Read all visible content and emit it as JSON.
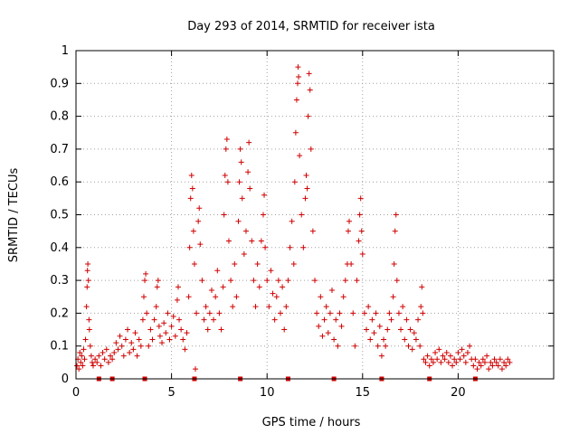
{
  "chart_data": {
    "type": "scatter",
    "title": "Day 293 of 2014, SRMTID for receiver ista",
    "xlabel": "GPS time / hours",
    "ylabel": "SRMTID / TECUs",
    "xlim": [
      0,
      25
    ],
    "ylim": [
      0,
      1
    ],
    "xticks": [
      0,
      5,
      10,
      15,
      20
    ],
    "yticks": [
      0,
      0.1,
      0.2,
      0.3,
      0.4,
      0.5,
      0.6,
      0.7,
      0.8,
      0.9,
      1
    ],
    "grid": true,
    "marker": "+",
    "color": "#d00000",
    "baseline_markers": {
      "marker": "square",
      "y": 0,
      "x": [
        1.2,
        1.9,
        3.6,
        6.2,
        8.6,
        11.1,
        13.5,
        16.0,
        18.5,
        20.9
      ]
    },
    "series": [
      {
        "name": "SRMTID",
        "points": [
          [
            0.05,
            0.04
          ],
          [
            0.1,
            0.06
          ],
          [
            0.15,
            0.03
          ],
          [
            0.2,
            0.08
          ],
          [
            0.25,
            0.05
          ],
          [
            0.3,
            0.07
          ],
          [
            0.35,
            0.04
          ],
          [
            0.4,
            0.09
          ],
          [
            0.45,
            0.06
          ],
          [
            0.5,
            0.12
          ],
          [
            0.55,
            0.22
          ],
          [
            0.58,
            0.28
          ],
          [
            0.6,
            0.33
          ],
          [
            0.62,
            0.35
          ],
          [
            0.65,
            0.3
          ],
          [
            0.68,
            0.18
          ],
          [
            0.7,
            0.15
          ],
          [
            0.75,
            0.1
          ],
          [
            0.8,
            0.07
          ],
          [
            0.85,
            0.05
          ],
          [
            0.9,
            0.04
          ],
          [
            1.0,
            0.06
          ],
          [
            1.1,
            0.05
          ],
          [
            1.2,
            0.07
          ],
          [
            1.3,
            0.04
          ],
          [
            1.4,
            0.08
          ],
          [
            1.5,
            0.06
          ],
          [
            1.6,
            0.09
          ],
          [
            1.7,
            0.05
          ],
          [
            1.8,
            0.07
          ],
          [
            1.9,
            0.06
          ],
          [
            2.0,
            0.08
          ],
          [
            2.1,
            0.11
          ],
          [
            2.2,
            0.09
          ],
          [
            2.3,
            0.13
          ],
          [
            2.4,
            0.1
          ],
          [
            2.5,
            0.07
          ],
          [
            2.6,
            0.12
          ],
          [
            2.7,
            0.15
          ],
          [
            2.8,
            0.08
          ],
          [
            2.9,
            0.11
          ],
          [
            3.0,
            0.09
          ],
          [
            3.1,
            0.14
          ],
          [
            3.2,
            0.07
          ],
          [
            3.3,
            0.12
          ],
          [
            3.4,
            0.1
          ],
          [
            3.5,
            0.18
          ],
          [
            3.55,
            0.25
          ],
          [
            3.6,
            0.3
          ],
          [
            3.65,
            0.32
          ],
          [
            3.7,
            0.2
          ],
          [
            3.8,
            0.1
          ],
          [
            3.9,
            0.15
          ],
          [
            4.0,
            0.12
          ],
          [
            4.1,
            0.18
          ],
          [
            4.2,
            0.22
          ],
          [
            4.25,
            0.28
          ],
          [
            4.3,
            0.3
          ],
          [
            4.35,
            0.16
          ],
          [
            4.4,
            0.13
          ],
          [
            4.5,
            0.11
          ],
          [
            4.6,
            0.17
          ],
          [
            4.7,
            0.14
          ],
          [
            4.8,
            0.2
          ],
          [
            4.9,
            0.12
          ],
          [
            5.0,
            0.16
          ],
          [
            5.1,
            0.19
          ],
          [
            5.2,
            0.13
          ],
          [
            5.3,
            0.24
          ],
          [
            5.35,
            0.28
          ],
          [
            5.4,
            0.18
          ],
          [
            5.5,
            0.15
          ],
          [
            5.6,
            0.12
          ],
          [
            5.7,
            0.09
          ],
          [
            5.8,
            0.14
          ],
          [
            5.9,
            0.25
          ],
          [
            5.95,
            0.4
          ],
          [
            6.0,
            0.55
          ],
          [
            6.05,
            0.62
          ],
          [
            6.1,
            0.58
          ],
          [
            6.15,
            0.45
          ],
          [
            6.2,
            0.35
          ],
          [
            6.25,
            0.03
          ],
          [
            6.3,
            0.2
          ],
          [
            6.4,
            0.48
          ],
          [
            6.45,
            0.52
          ],
          [
            6.5,
            0.41
          ],
          [
            6.6,
            0.3
          ],
          [
            6.7,
            0.18
          ],
          [
            6.8,
            0.22
          ],
          [
            6.9,
            0.15
          ],
          [
            7.0,
            0.2
          ],
          [
            7.1,
            0.27
          ],
          [
            7.2,
            0.18
          ],
          [
            7.3,
            0.25
          ],
          [
            7.4,
            0.33
          ],
          [
            7.5,
            0.2
          ],
          [
            7.6,
            0.15
          ],
          [
            7.7,
            0.28
          ],
          [
            7.75,
            0.5
          ],
          [
            7.8,
            0.62
          ],
          [
            7.85,
            0.7
          ],
          [
            7.9,
            0.73
          ],
          [
            7.95,
            0.6
          ],
          [
            8.0,
            0.42
          ],
          [
            8.1,
            0.3
          ],
          [
            8.2,
            0.22
          ],
          [
            8.3,
            0.35
          ],
          [
            8.4,
            0.25
          ],
          [
            8.5,
            0.48
          ],
          [
            8.55,
            0.6
          ],
          [
            8.6,
            0.7
          ],
          [
            8.65,
            0.66
          ],
          [
            8.7,
            0.55
          ],
          [
            8.8,
            0.38
          ],
          [
            8.9,
            0.45
          ],
          [
            9.0,
            0.63
          ],
          [
            9.05,
            0.72
          ],
          [
            9.1,
            0.58
          ],
          [
            9.2,
            0.42
          ],
          [
            9.3,
            0.3
          ],
          [
            9.4,
            0.22
          ],
          [
            9.5,
            0.35
          ],
          [
            9.6,
            0.28
          ],
          [
            9.7,
            0.42
          ],
          [
            9.8,
            0.5
          ],
          [
            9.85,
            0.56
          ],
          [
            9.9,
            0.4
          ],
          [
            10.0,
            0.3
          ],
          [
            10.1,
            0.22
          ],
          [
            10.2,
            0.33
          ],
          [
            10.3,
            0.26
          ],
          [
            10.4,
            0.18
          ],
          [
            10.5,
            0.25
          ],
          [
            10.6,
            0.3
          ],
          [
            10.7,
            0.2
          ],
          [
            10.8,
            0.28
          ],
          [
            10.9,
            0.15
          ],
          [
            11.0,
            0.22
          ],
          [
            11.1,
            0.3
          ],
          [
            11.2,
            0.4
          ],
          [
            11.3,
            0.48
          ],
          [
            11.4,
            0.35
          ],
          [
            11.45,
            0.6
          ],
          [
            11.5,
            0.75
          ],
          [
            11.55,
            0.85
          ],
          [
            11.6,
            0.9
          ],
          [
            11.62,
            0.95
          ],
          [
            11.65,
            0.92
          ],
          [
            11.7,
            0.68
          ],
          [
            11.8,
            0.5
          ],
          [
            11.9,
            0.4
          ],
          [
            12.0,
            0.55
          ],
          [
            12.05,
            0.62
          ],
          [
            12.1,
            0.58
          ],
          [
            12.15,
            0.8
          ],
          [
            12.2,
            0.93
          ],
          [
            12.25,
            0.88
          ],
          [
            12.3,
            0.7
          ],
          [
            12.4,
            0.45
          ],
          [
            12.5,
            0.3
          ],
          [
            12.6,
            0.2
          ],
          [
            12.7,
            0.16
          ],
          [
            12.8,
            0.25
          ],
          [
            12.9,
            0.13
          ],
          [
            13.0,
            0.18
          ],
          [
            13.1,
            0.22
          ],
          [
            13.2,
            0.14
          ],
          [
            13.3,
            0.2
          ],
          [
            13.4,
            0.27
          ],
          [
            13.5,
            0.12
          ],
          [
            13.6,
            0.18
          ],
          [
            13.7,
            0.1
          ],
          [
            13.8,
            0.2
          ],
          [
            13.9,
            0.16
          ],
          [
            14.0,
            0.25
          ],
          [
            14.1,
            0.3
          ],
          [
            14.2,
            0.35
          ],
          [
            14.25,
            0.45
          ],
          [
            14.3,
            0.48
          ],
          [
            14.4,
            0.35
          ],
          [
            14.5,
            0.2
          ],
          [
            14.6,
            0.1
          ],
          [
            14.7,
            0.3
          ],
          [
            14.8,
            0.42
          ],
          [
            14.85,
            0.5
          ],
          [
            14.9,
            0.55
          ],
          [
            14.95,
            0.45
          ],
          [
            15.0,
            0.38
          ],
          [
            15.1,
            0.2
          ],
          [
            15.2,
            0.15
          ],
          [
            15.3,
            0.22
          ],
          [
            15.4,
            0.12
          ],
          [
            15.5,
            0.18
          ],
          [
            15.6,
            0.14
          ],
          [
            15.7,
            0.2
          ],
          [
            15.8,
            0.1
          ],
          [
            15.9,
            0.16
          ],
          [
            16.0,
            0.07
          ],
          [
            16.1,
            0.12
          ],
          [
            16.2,
            0.1
          ],
          [
            16.3,
            0.15
          ],
          [
            16.4,
            0.2
          ],
          [
            16.5,
            0.18
          ],
          [
            16.6,
            0.25
          ],
          [
            16.65,
            0.35
          ],
          [
            16.7,
            0.45
          ],
          [
            16.75,
            0.5
          ],
          [
            16.8,
            0.3
          ],
          [
            16.9,
            0.2
          ],
          [
            17.0,
            0.15
          ],
          [
            17.1,
            0.22
          ],
          [
            17.2,
            0.12
          ],
          [
            17.3,
            0.18
          ],
          [
            17.4,
            0.1
          ],
          [
            17.5,
            0.15
          ],
          [
            17.6,
            0.09
          ],
          [
            17.7,
            0.14
          ],
          [
            17.8,
            0.12
          ],
          [
            17.9,
            0.18
          ],
          [
            18.0,
            0.1
          ],
          [
            18.05,
            0.22
          ],
          [
            18.1,
            0.28
          ],
          [
            18.15,
            0.2
          ],
          [
            18.2,
            0.06
          ],
          [
            18.3,
            0.05
          ],
          [
            18.4,
            0.07
          ],
          [
            18.5,
            0.04
          ],
          [
            18.6,
            0.06
          ],
          [
            18.7,
            0.05
          ],
          [
            18.8,
            0.08
          ],
          [
            18.9,
            0.06
          ],
          [
            19.0,
            0.09
          ],
          [
            19.1,
            0.05
          ],
          [
            19.2,
            0.07
          ],
          [
            19.3,
            0.06
          ],
          [
            19.4,
            0.08
          ],
          [
            19.5,
            0.05
          ],
          [
            19.6,
            0.07
          ],
          [
            19.7,
            0.04
          ],
          [
            19.8,
            0.06
          ],
          [
            19.9,
            0.05
          ],
          [
            20.0,
            0.08
          ],
          [
            20.1,
            0.06
          ],
          [
            20.2,
            0.09
          ],
          [
            20.3,
            0.07
          ],
          [
            20.4,
            0.05
          ],
          [
            20.5,
            0.08
          ],
          [
            20.6,
            0.1
          ],
          [
            20.7,
            0.06
          ],
          [
            20.8,
            0.04
          ],
          [
            20.9,
            0.06
          ],
          [
            21.0,
            0.03
          ],
          [
            21.1,
            0.05
          ],
          [
            21.2,
            0.04
          ],
          [
            21.3,
            0.06
          ],
          [
            21.4,
            0.05
          ],
          [
            21.5,
            0.07
          ],
          [
            21.6,
            0.03
          ],
          [
            21.7,
            0.05
          ],
          [
            21.8,
            0.04
          ],
          [
            21.9,
            0.06
          ],
          [
            22.0,
            0.05
          ],
          [
            22.1,
            0.04
          ],
          [
            22.2,
            0.06
          ],
          [
            22.3,
            0.03
          ],
          [
            22.4,
            0.05
          ],
          [
            22.5,
            0.04
          ],
          [
            22.6,
            0.06
          ],
          [
            22.7,
            0.05
          ]
        ]
      }
    ]
  }
}
